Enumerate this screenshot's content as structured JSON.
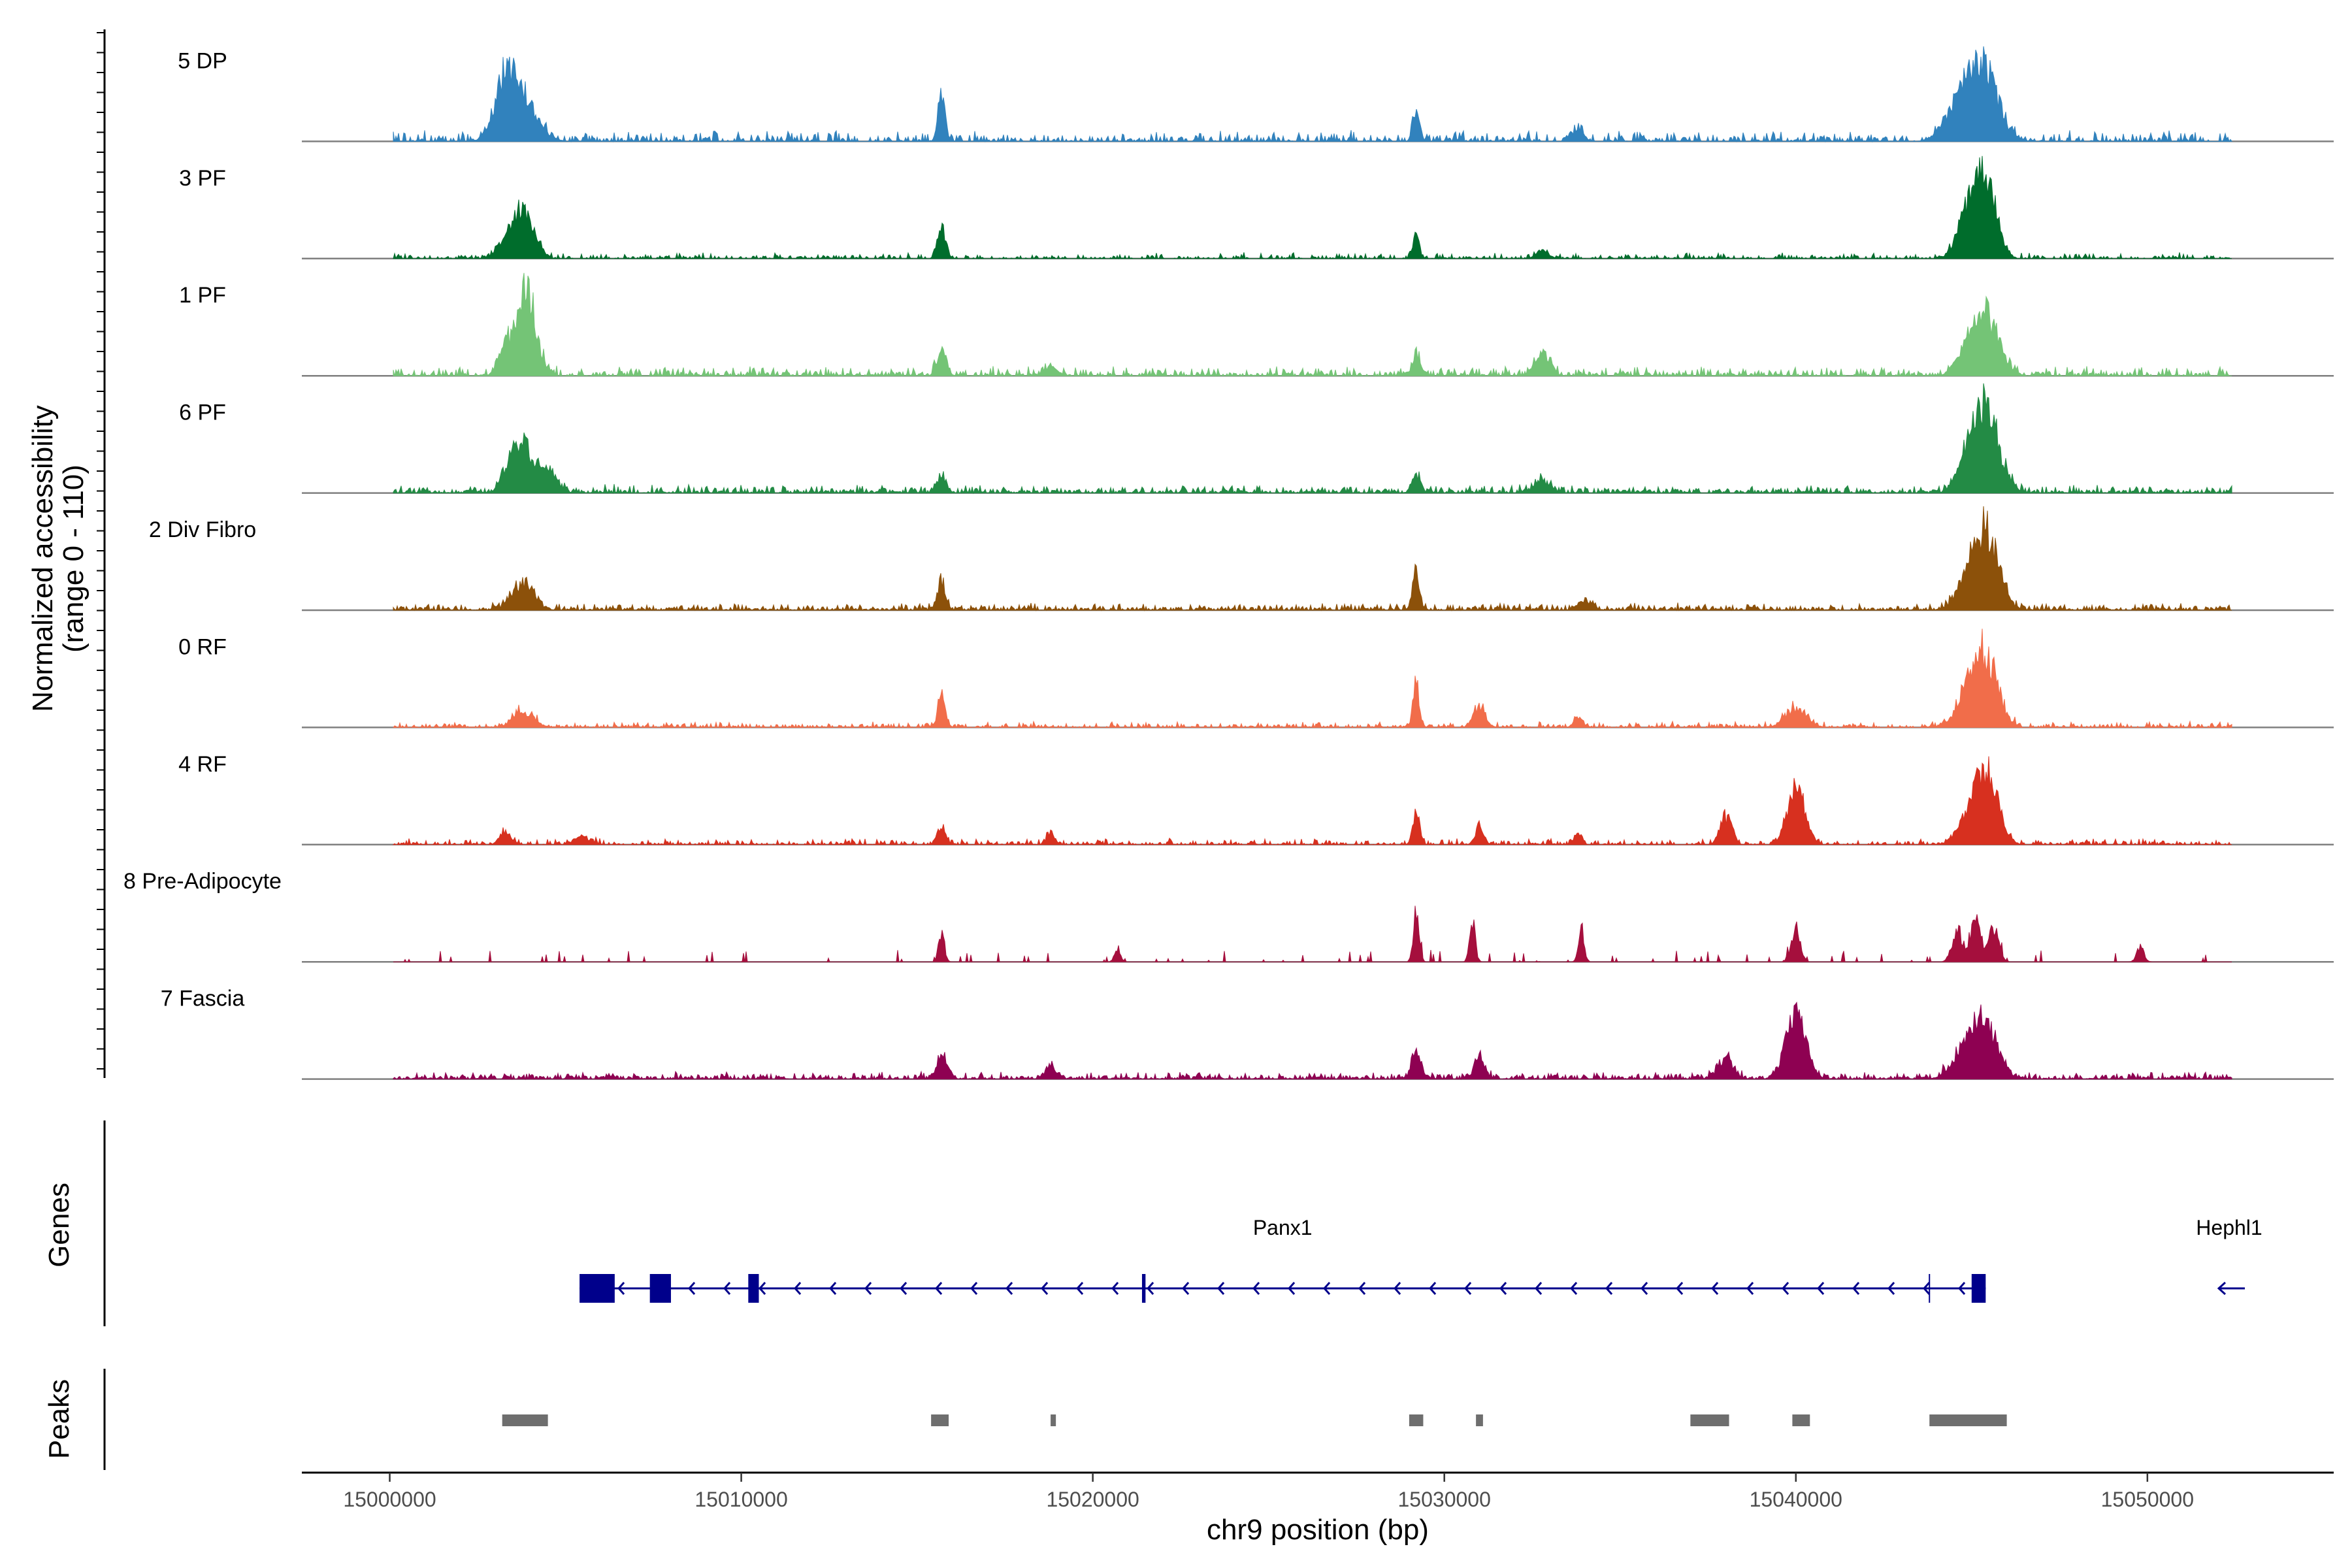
{
  "chart_data": {
    "type": "area",
    "subtype": "genomic-coverage-track",
    "y_axis": {
      "label_line1": "Normalized accessibility",
      "label_line2": "(range 0 - 110)",
      "ylim": [
        0,
        110
      ]
    },
    "x_axis": {
      "label": "chr9 position (bp)",
      "xlim": [
        14997500,
        15055300
      ],
      "ticks": [
        15000000,
        15010000,
        15020000,
        15030000,
        15040000,
        15050000
      ],
      "tick_labels": [
        "15000000",
        "15010000",
        "15020000",
        "15030000",
        "15040000",
        "15050000"
      ]
    },
    "data_range": [
      15000100,
      15052400
    ],
    "series": [
      {
        "name": "5 DP",
        "color": "#3182BD",
        "baseline": 9,
        "density": 0.6,
        "peaks": [
          [
            15003300,
            310,
            85
          ],
          [
            15003900,
            380,
            40
          ],
          [
            15015700,
            100,
            55
          ],
          [
            15029200,
            90,
            42
          ],
          [
            15033800,
            150,
            18
          ],
          [
            15044500,
            350,
            35
          ],
          [
            15045300,
            420,
            100
          ]
        ]
      },
      {
        "name": "3 PF",
        "color": "#006D2C",
        "baseline": 5,
        "density": 0.5,
        "peaks": [
          [
            15003300,
            260,
            18
          ],
          [
            15003800,
            300,
            60
          ],
          [
            15015700,
            110,
            42
          ],
          [
            15029200,
            90,
            30
          ],
          [
            15032800,
            160,
            12
          ],
          [
            15044900,
            300,
            52
          ],
          [
            15045400,
            300,
            100
          ]
        ]
      },
      {
        "name": "1 PF",
        "color": "#74C476",
        "baseline": 8,
        "density": 0.7,
        "peaks": [
          [
            15003300,
            200,
            35
          ],
          [
            15003900,
            280,
            100
          ],
          [
            15015700,
            130,
            30
          ],
          [
            15018800,
            200,
            10
          ],
          [
            15029200,
            110,
            28
          ],
          [
            15032800,
            200,
            30
          ],
          [
            15044800,
            300,
            20
          ],
          [
            15045400,
            380,
            75
          ]
        ]
      },
      {
        "name": "6 PF",
        "color": "#238B45",
        "baseline": 7,
        "density": 0.75,
        "peaks": [
          [
            15003400,
            220,
            22
          ],
          [
            15003800,
            280,
            58
          ],
          [
            15004500,
            250,
            25
          ],
          [
            15015700,
            130,
            22
          ],
          [
            15029200,
            110,
            22
          ],
          [
            15032800,
            220,
            14
          ],
          [
            15044900,
            300,
            28
          ],
          [
            15045400,
            380,
            100
          ]
        ]
      },
      {
        "name": "2 Div Fibro",
        "color": "#8C510A",
        "baseline": 6,
        "density": 0.75,
        "peaks": [
          [
            15003800,
            300,
            35
          ],
          [
            15015700,
            110,
            38
          ],
          [
            15029200,
            100,
            45
          ],
          [
            15034000,
            200,
            10
          ],
          [
            15044800,
            300,
            25
          ],
          [
            15045400,
            350,
            100
          ]
        ]
      },
      {
        "name": "0 RF",
        "color": "#F16D4A",
        "baseline": 5,
        "density": 0.6,
        "peaks": [
          [
            15003800,
            300,
            20
          ],
          [
            15015700,
            110,
            38
          ],
          [
            15029200,
            90,
            55
          ],
          [
            15031000,
            160,
            28
          ],
          [
            15033800,
            120,
            12
          ],
          [
            15040000,
            300,
            25
          ],
          [
            15044900,
            320,
            40
          ],
          [
            15045400,
            350,
            85
          ]
        ]
      },
      {
        "name": "4 RF",
        "color": "#D7301F",
        "baseline": 5,
        "density": 0.6,
        "peaks": [
          [
            15003300,
            160,
            15
          ],
          [
            15005500,
            200,
            10
          ],
          [
            15015700,
            110,
            22
          ],
          [
            15018800,
            110,
            15
          ],
          [
            15029200,
            100,
            38
          ],
          [
            15031000,
            120,
            22
          ],
          [
            15033800,
            100,
            18
          ],
          [
            15038000,
            160,
            35
          ],
          [
            15040000,
            250,
            75
          ],
          [
            15044800,
            280,
            22
          ],
          [
            15045400,
            320,
            100
          ]
        ]
      },
      {
        "name": "8 Pre-Adipocyte",
        "color": "#A50F3D",
        "baseline": 0,
        "density": 0.35,
        "peaks": [
          [
            15015700,
            80,
            40
          ],
          [
            15020700,
            80,
            18
          ],
          [
            15029200,
            80,
            70
          ],
          [
            15030800,
            80,
            50
          ],
          [
            15033900,
            80,
            42
          ],
          [
            15040000,
            120,
            45
          ],
          [
            15044600,
            150,
            40
          ],
          [
            15045100,
            130,
            55
          ],
          [
            15045600,
            150,
            45
          ],
          [
            15049800,
            100,
            18
          ]
        ]
      },
      {
        "name": "7 Fascia",
        "color": "#8E0152",
        "baseline": 6,
        "density": 0.75,
        "peaks": [
          [
            15015700,
            150,
            28
          ],
          [
            15018800,
            150,
            15
          ],
          [
            15029200,
            120,
            30
          ],
          [
            15031000,
            140,
            28
          ],
          [
            15038000,
            200,
            28
          ],
          [
            15040000,
            280,
            80
          ],
          [
            15044800,
            350,
            35
          ],
          [
            15045400,
            350,
            70
          ]
        ]
      }
    ],
    "genes": {
      "label": "Genes",
      "items": [
        {
          "name": "Panx1",
          "strand": "-",
          "start": 15005400,
          "end": 15045400,
          "exons": [
            [
              15005400,
              15006400
            ],
            [
              15007400,
              15008000
            ],
            [
              15010200,
              15010500
            ],
            [
              15021400,
              15021500
            ],
            [
              15045000,
              15045400
            ]
          ],
          "marks": [
            15043800
          ]
        },
        {
          "name": "Hephl1",
          "strand": "-",
          "start": 15051800,
          "end": 15052600,
          "exons": [],
          "marks": []
        }
      ]
    },
    "peaks": {
      "label": "Peaks",
      "regions": [
        [
          15003200,
          15004500
        ],
        [
          15015400,
          15015900
        ],
        [
          15018800,
          15018950
        ],
        [
          15029000,
          15029400
        ],
        [
          15030900,
          15031100
        ],
        [
          15037000,
          15038100
        ],
        [
          15039900,
          15040400
        ],
        [
          15043800,
          15046000
        ]
      ]
    }
  }
}
